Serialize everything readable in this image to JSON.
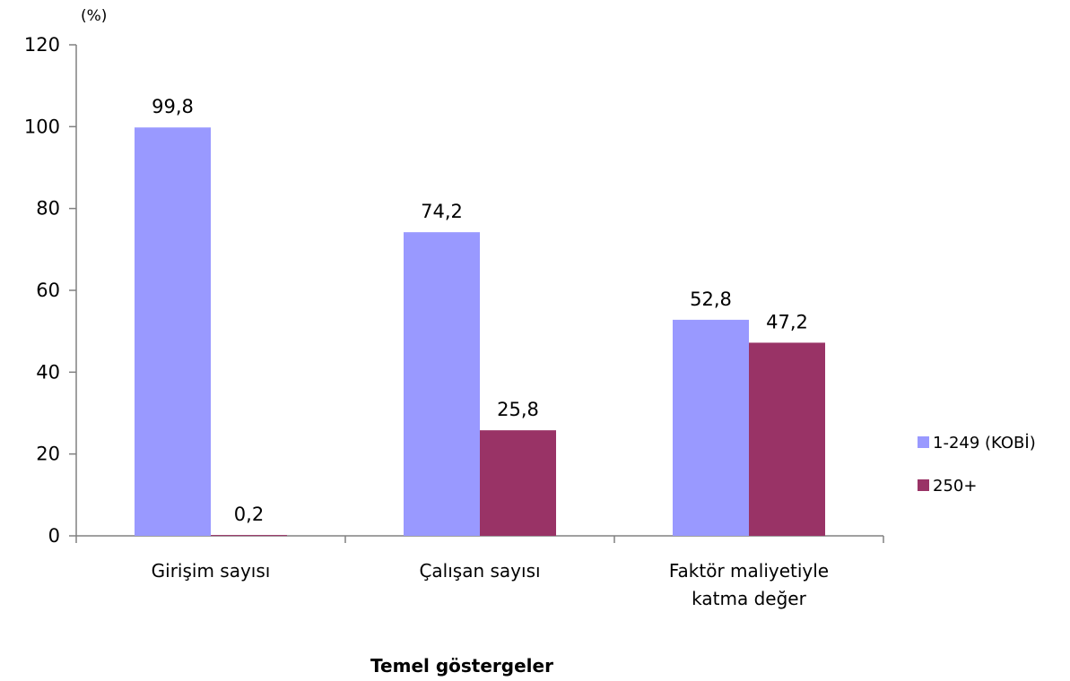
{
  "chart_data": {
    "type": "bar",
    "unit_label": "(%)",
    "xlabel": "Temel göstergeler",
    "ylabel": "",
    "ylim": [
      0,
      120
    ],
    "yticks": [
      0,
      20,
      40,
      60,
      80,
      100,
      120
    ],
    "categories": [
      [
        "Girişim sayısı"
      ],
      [
        "Çalışan sayısı"
      ],
      [
        "Faktör maliyetiyle",
        "katma değer"
      ]
    ],
    "series": [
      {
        "name": "1-249 (KOBİ)",
        "color": "#9999ff",
        "values": [
          99.8,
          74.2,
          52.8
        ],
        "labels": [
          "99,8",
          "74,2",
          "52,8"
        ]
      },
      {
        "name": "250+",
        "color": "#993366",
        "values": [
          0.2,
          25.8,
          47.2
        ],
        "labels": [
          "0,2",
          "25,8",
          "47,2"
        ]
      }
    ],
    "grid": false,
    "legend_position": "right"
  }
}
